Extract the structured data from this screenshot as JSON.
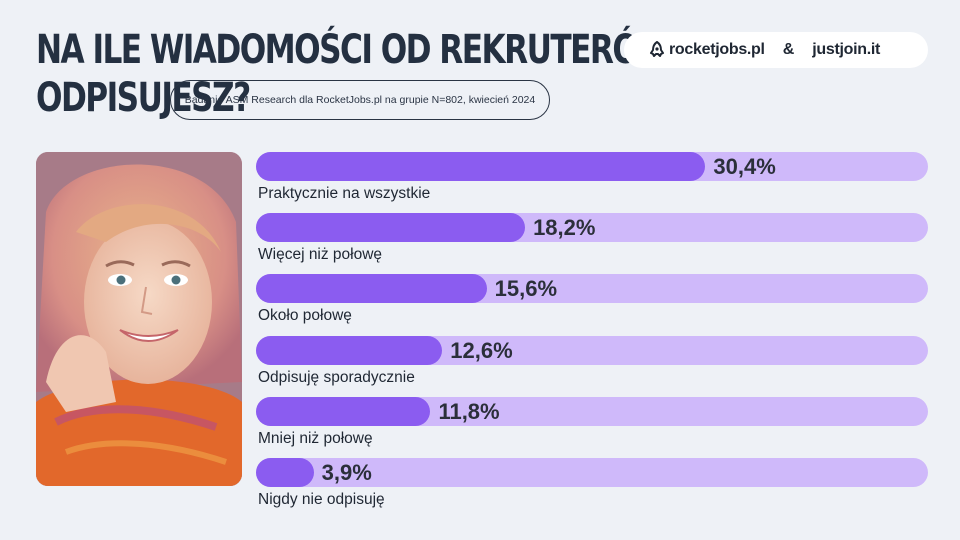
{
  "header": {
    "title_line1": "NA ILE WIADOMOŚCI OD REKRUTERÓW",
    "title_line2": "ODPISUJESZ?",
    "subtitle": "Badanie ASM Research dla RocketJobs.pl na grupie N=802, kwiecień 2024"
  },
  "brand": {
    "rocketjobs": "rocketjobs.pl",
    "ampersand": "&",
    "justjoin": "justjoin.it"
  },
  "colors": {
    "background": "#eef1f6",
    "bar_track": "#cfb9fa",
    "bar_fill": "#8b5cf0",
    "title": "#243041"
  },
  "photo": {
    "icon": "portrait-photo"
  },
  "chart_data": {
    "type": "bar",
    "orientation": "horizontal",
    "categories": [
      "Praktycznie na wszystkie",
      "Więcej niż połowę",
      "Około połowę",
      "Odpisuję sporadycznie",
      "Mniej niż połowę",
      "Nigdy nie odpisuję"
    ],
    "values": [
      30.4,
      18.2,
      15.6,
      12.6,
      11.8,
      3.9
    ],
    "value_labels": [
      "30,4%",
      "18,2%",
      "15,6%",
      "12,6%",
      "11,8%",
      "3,9%"
    ],
    "xlim": [
      0,
      100
    ],
    "grid": false,
    "legend": "none"
  }
}
